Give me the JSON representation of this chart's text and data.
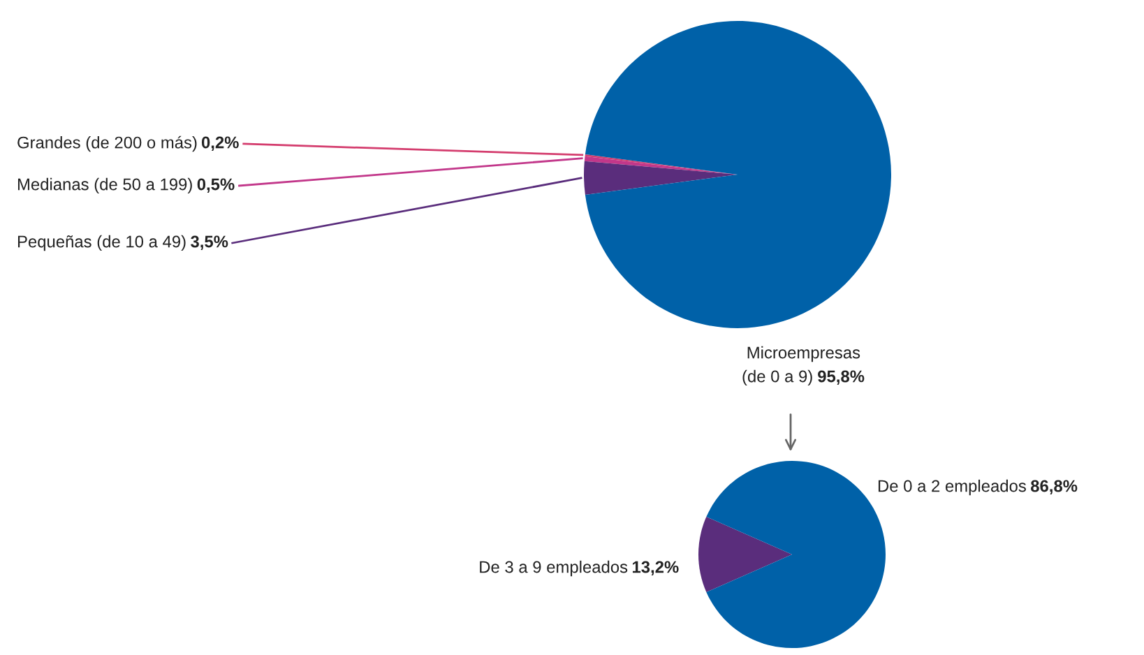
{
  "chart_data": [
    {
      "type": "pie",
      "categories": [
        "Grandes (de 200 o más)",
        "Medianas (de 50 a 199)",
        "Pequeñas (de 10 a 49)",
        "Microempresas\n(de 0 a 9)"
      ],
      "values": [
        0.2,
        0.5,
        3.5,
        95.8
      ],
      "value_labels": [
        "0,2%",
        "0,5%",
        "3,5%",
        "95,8%"
      ],
      "colors": [
        "#d43d6e",
        "#c2378a",
        "#5a2d7c",
        "#0061a8"
      ]
    },
    {
      "type": "pie",
      "categories": [
        "De 0 a 2 empleados",
        "De 3 a 9 empleados"
      ],
      "values": [
        86.8,
        13.2
      ],
      "value_labels": [
        "86,8%",
        "13,2%"
      ],
      "colors": [
        "#0061a8",
        "#5a2d7c"
      ]
    }
  ]
}
